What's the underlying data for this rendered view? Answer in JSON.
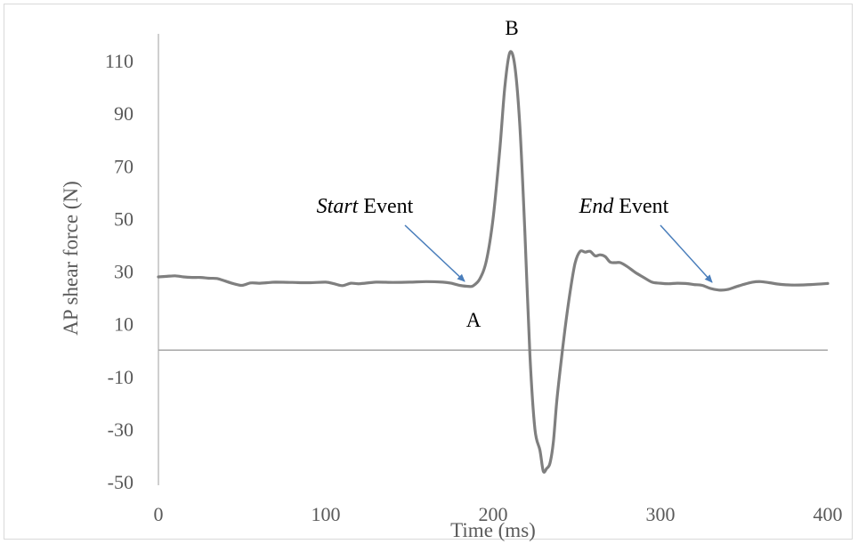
{
  "chart_data": {
    "type": "line",
    "title": "",
    "xlabel": "Time (ms)",
    "ylabel": "AP shear force (N)",
    "xlim": [
      0,
      400
    ],
    "ylim": [
      -50,
      120
    ],
    "x_ticks": [
      0,
      100,
      200,
      300,
      400
    ],
    "y_ticks": [
      -50,
      -30,
      -10,
      10,
      30,
      50,
      70,
      90,
      110
    ],
    "grid": false,
    "zero_line": true,
    "line_color": "#7f7f7f",
    "series": [
      {
        "x": [
          0,
          5,
          10,
          15,
          20,
          25,
          30,
          35,
          40,
          45,
          50,
          55,
          60,
          65,
          70,
          80,
          90,
          100,
          105,
          110,
          115,
          120,
          130,
          140,
          150,
          160,
          170,
          175,
          180,
          185,
          188,
          192,
          196,
          200,
          204,
          207,
          210,
          213,
          216,
          219,
          222,
          225,
          228,
          230,
          232,
          234,
          236,
          238,
          240,
          243,
          246,
          249,
          252,
          255,
          258,
          261,
          264,
          267,
          270,
          273,
          276,
          280,
          285,
          290,
          295,
          300,
          305,
          310,
          315,
          320,
          325,
          330,
          335,
          340,
          345,
          350,
          355,
          360,
          365,
          370,
          375,
          380,
          390,
          400
        ],
        "values": [
          27.8,
          28,
          28.2,
          27.8,
          27.6,
          27.6,
          27.3,
          27.2,
          26.2,
          25.2,
          24.6,
          25.5,
          25.4,
          25.6,
          25.8,
          25.7,
          25.6,
          25.8,
          25.2,
          24.5,
          25.4,
          25.2,
          25.8,
          25.7,
          25.8,
          26,
          25.8,
          25.4,
          24.6,
          24.2,
          24.4,
          27,
          34,
          50,
          76,
          100,
          113,
          108,
          85,
          45,
          -2,
          -30,
          -38,
          -46,
          -45,
          -43,
          -35,
          -20,
          -8,
          8,
          22,
          33,
          37.5,
          37.2,
          37.5,
          35.8,
          36.2,
          35.5,
          33.4,
          33.2,
          33.2,
          31.8,
          29.5,
          27.6,
          25.8,
          25.4,
          25.2,
          25.4,
          25.3,
          24.9,
          24.6,
          23.4,
          22.8,
          23,
          24,
          25,
          25.8,
          26,
          25.6,
          25.1,
          24.8,
          24.7,
          24.9,
          25.3
        ]
      }
    ],
    "annotations": [
      {
        "id": "start",
        "label_italic": "Start",
        "label_rest": " Event",
        "x": 0.4,
        "y": 0.5
      },
      {
        "id": "end",
        "label_italic": "End",
        "label_rest": " Event",
        "x": 0.4,
        "y": 0.5
      }
    ],
    "point_labels": [
      {
        "label": "A",
        "x": 187,
        "y": 24.2
      },
      {
        "label": "B",
        "x": 210,
        "y": 113
      }
    ],
    "arrow_color": "#4a7ebb"
  }
}
